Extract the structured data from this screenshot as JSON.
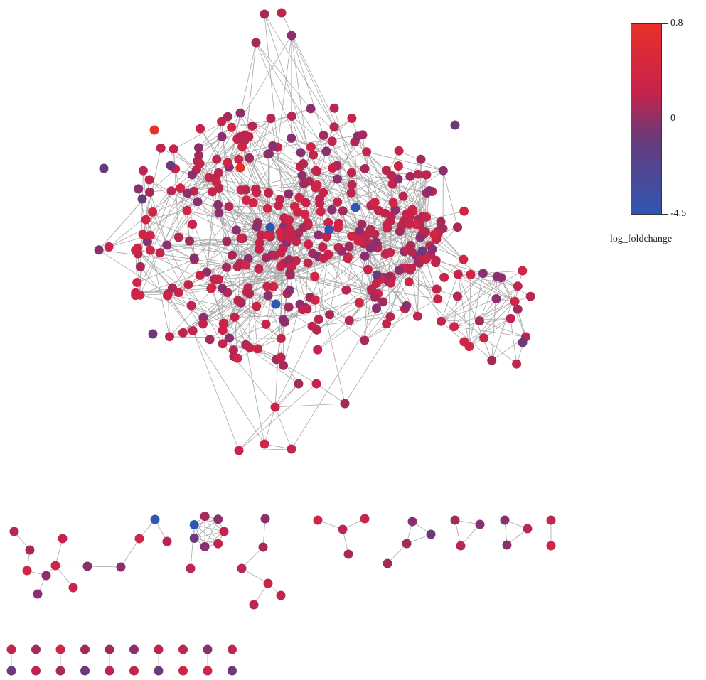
{
  "legend": {
    "title": "log_foldchange",
    "max_label": "0.8",
    "mid_label": "0",
    "min_label": "-4.5",
    "max_value": 0.8,
    "mid_value": 0,
    "min_value": -4.5,
    "colors": {
      "high": "#e8302a",
      "mid": "#6a3a7a",
      "low": "#2f56b3",
      "base": "#c8234a"
    }
  }
}
